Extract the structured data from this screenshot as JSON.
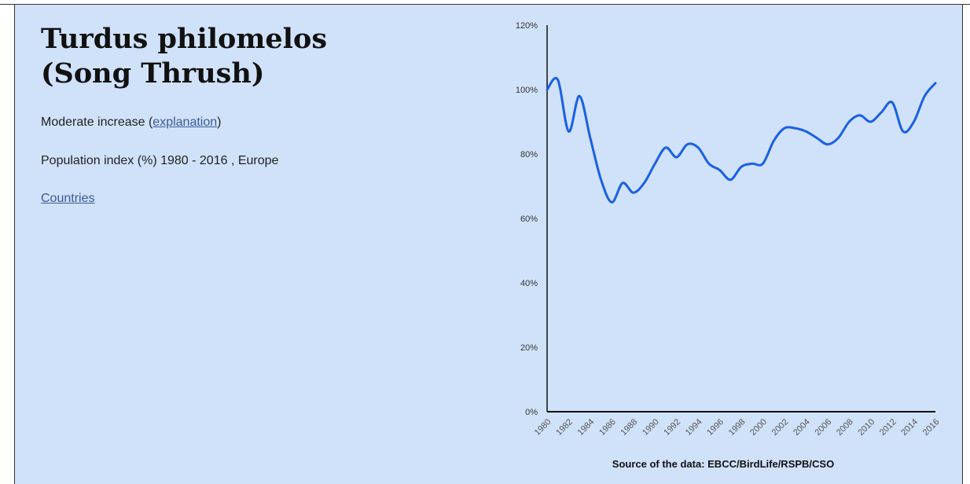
{
  "header": {
    "title_line1": "Turdus philomelos",
    "title_line2": "(Song Thrush)"
  },
  "trend": {
    "text": "Moderate increase",
    "open_paren": " (",
    "link_label": "explanation",
    "close_paren": ")"
  },
  "subtitle": "Population index (%) 1980 - 2016 , Europe",
  "countries_link": "Countries",
  "chart_data": {
    "type": "line",
    "title": "",
    "xlabel": "",
    "ylabel": "",
    "ylim": [
      0,
      120
    ],
    "y_ticks": [
      0,
      20,
      40,
      60,
      80,
      100,
      120
    ],
    "y_tick_labels": [
      "0%",
      "20%",
      "40%",
      "60%",
      "80%",
      "100%",
      "120%"
    ],
    "x_tick_labels": [
      "1980",
      "1982",
      "1984",
      "1986",
      "1988",
      "1990",
      "1992",
      "1994",
      "1996",
      "1998",
      "2000",
      "2002",
      "2004",
      "2006",
      "2008",
      "2010",
      "2012",
      "2014",
      "2016"
    ],
    "grid": false,
    "line_color": "#1a5fe6",
    "x": [
      1980,
      1981,
      1982,
      1983,
      1984,
      1985,
      1986,
      1987,
      1988,
      1989,
      1990,
      1991,
      1992,
      1993,
      1994,
      1995,
      1996,
      1997,
      1998,
      1999,
      2000,
      2001,
      2002,
      2003,
      2004,
      2005,
      2006,
      2007,
      2008,
      2009,
      2010,
      2011,
      2012,
      2013,
      2014,
      2015,
      2016
    ],
    "values": [
      100,
      103,
      87,
      98,
      85,
      72,
      65,
      71,
      68,
      71,
      77,
      82,
      79,
      83,
      82,
      77,
      75,
      72,
      76,
      77,
      77,
      84,
      88,
      88,
      87,
      85,
      83,
      85,
      90,
      92,
      90,
      93,
      96,
      87,
      90,
      98,
      102
    ],
    "source": "Source of the data: EBCC/BirdLife/RSPB/CSO"
  }
}
